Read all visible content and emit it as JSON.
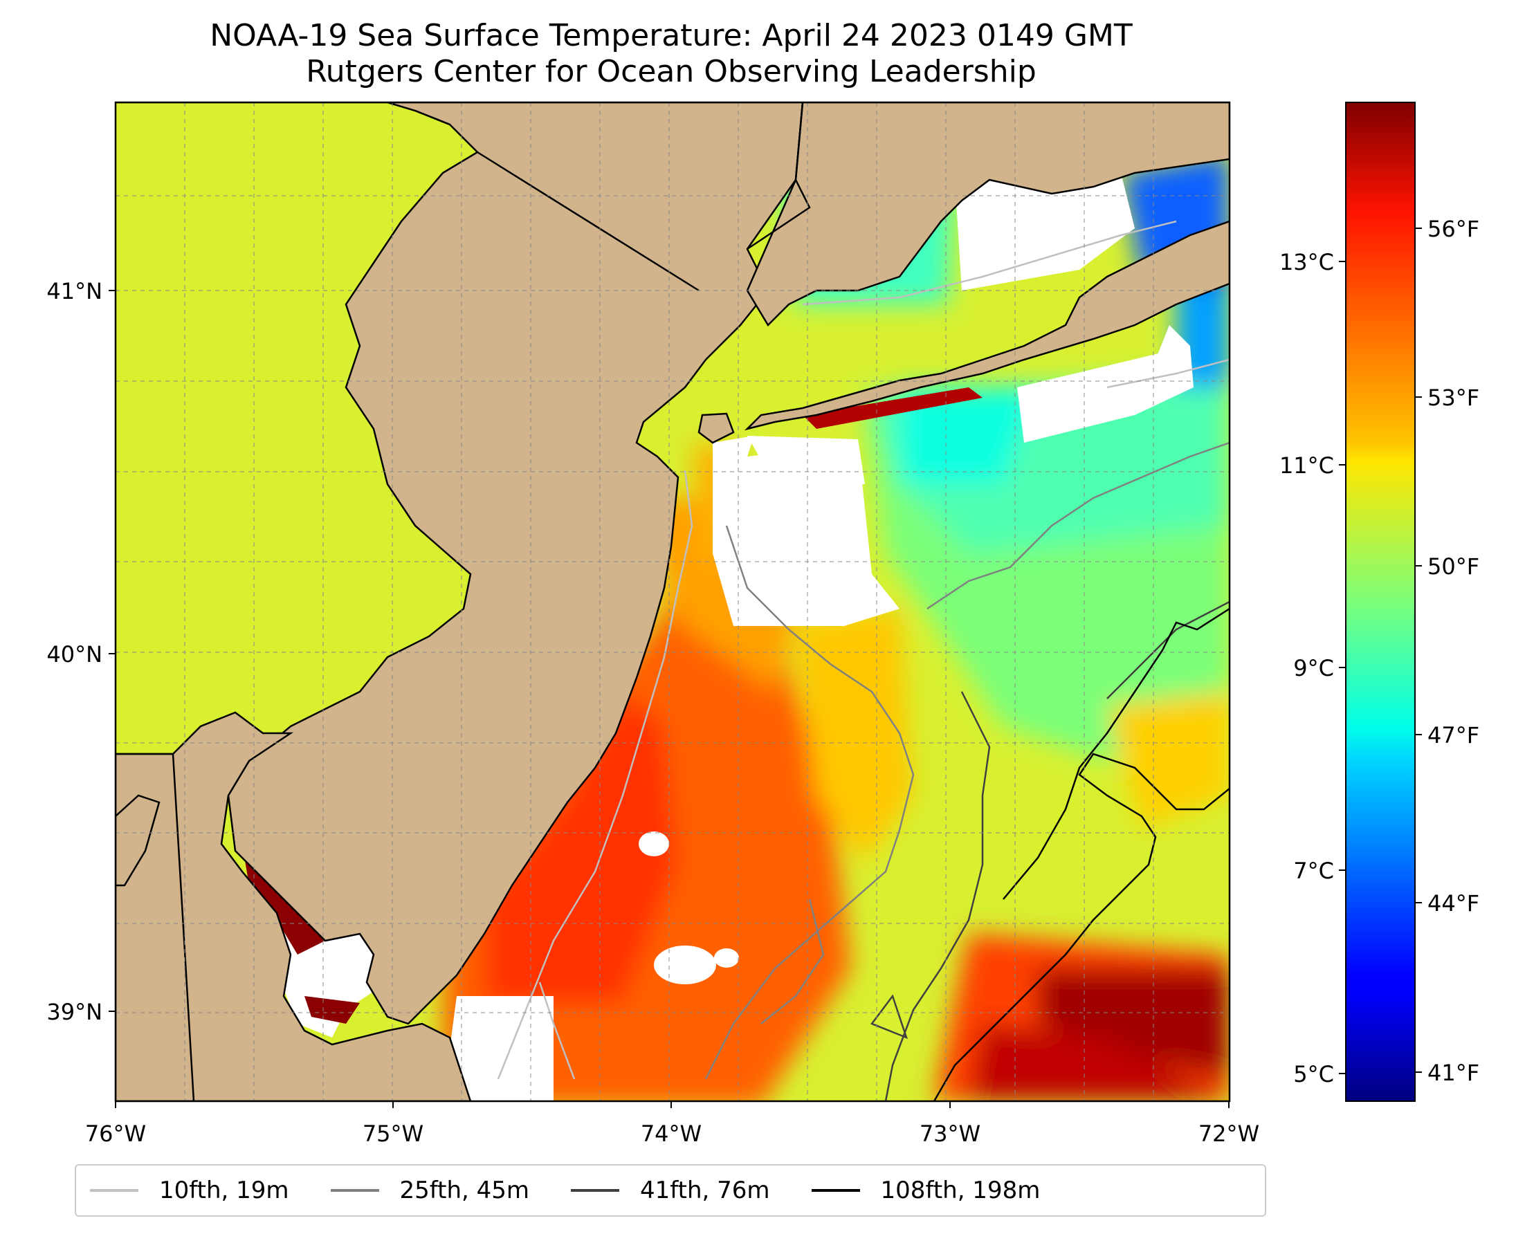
{
  "title": {
    "line1": "NOAA-19 Sea Surface Temperature: April 24 2023 0149 GMT",
    "line2": "Rutgers Center for Ocean Observing Leadership"
  },
  "map": {
    "lon_range": [
      -76,
      -72
    ],
    "lat_range": [
      38.75,
      41.5
    ],
    "x_ticks": [
      "76°W",
      "75°W",
      "74°W",
      "73°W",
      "72°W"
    ],
    "y_ticks": [
      "39°N",
      "40°N",
      "41°N"
    ],
    "land_color": "#D2B48C",
    "nodata_color": "#FFFFFF",
    "gridlines": true
  },
  "colorbar": {
    "colormap": "jet",
    "celsius_ticks": [
      "5°C",
      "7°C",
      "9°C",
      "11°C",
      "13°C"
    ],
    "fahrenheit_ticks": [
      "41°F",
      "44°F",
      "47°F",
      "50°F",
      "53°F",
      "56°F"
    ]
  },
  "legend": [
    {
      "label": "10fth, 19m",
      "color": "#C0C0C0"
    },
    {
      "label": "25fth, 45m",
      "color": "#808080"
    },
    {
      "label": "41fth, 76m",
      "color": "#404040"
    },
    {
      "label": "108fth, 198m",
      "color": "#000000"
    }
  ]
}
